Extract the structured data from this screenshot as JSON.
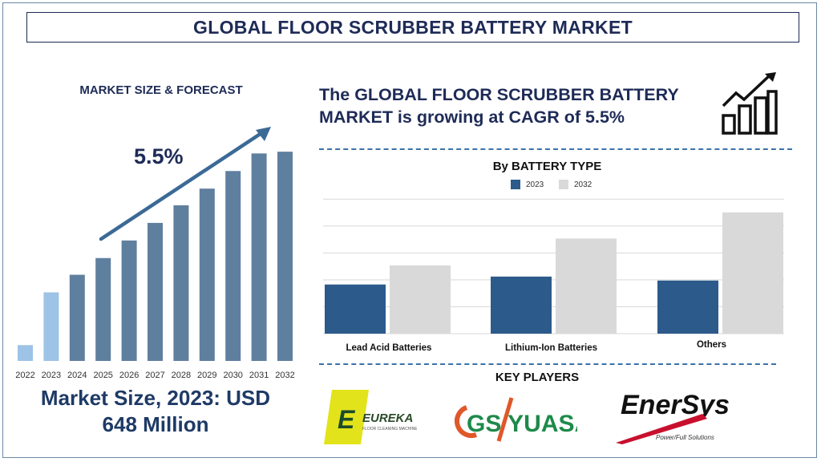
{
  "header": {
    "title": "GLOBAL FLOOR SCRUBBER BATTERY MARKET"
  },
  "left": {
    "section_title": "MARKET SIZE & FORECAST",
    "cagr_label": "5.5%",
    "market_size_text_line1": "Market Size, 2023: USD",
    "market_size_text_line2": "648 Million"
  },
  "right": {
    "headline_line1": "The GLOBAL FLOOR SCRUBBER BATTERY",
    "headline_line2": "MARKET is growing at CAGR of 5.5%",
    "battery_title": "By BATTERY TYPE",
    "key_players_title": "KEY PLAYERS"
  },
  "key_players": {
    "eureka": {
      "name": "EUREKA",
      "tagline": "FLOOR CLEANING MACHINES"
    },
    "gs_yuasa": {
      "name": "GS YUASA"
    },
    "enersys": {
      "name": "EnerSys",
      "tagline": "Power/Full Solutions"
    }
  },
  "colors": {
    "navy": "#1e2b57",
    "bar_main": "#5f7f9f",
    "bar_light": "#9dc3e6",
    "series_2023": "#2c5a8b",
    "series_2032": "#d9d9d9",
    "arrow": "#3b6a96"
  },
  "chart_data": [
    {
      "type": "bar",
      "title": "MARKET SIZE & FORECAST",
      "categories": [
        "2022",
        "2023",
        "2024",
        "2025",
        "2026",
        "2027",
        "2028",
        "2029",
        "2030",
        "2031",
        "2032"
      ],
      "values": [
        18,
        78,
        98,
        117,
        137,
        157,
        177,
        196,
        216,
        236,
        238
      ],
      "ylim": [
        0,
        260
      ],
      "highlight_indices": [
        0,
        1
      ],
      "annotation": "5.5%",
      "grid": false
    },
    {
      "type": "bar",
      "title": "By BATTERY TYPE",
      "categories": [
        "Lead Acid Batteries",
        "Lithium-Ion Batteries",
        "Others"
      ],
      "series": [
        {
          "name": "2023",
          "values": [
            62,
            72,
            67
          ]
        },
        {
          "name": "2032",
          "values": [
            86,
            120,
            153
          ]
        }
      ],
      "ylim": [
        0,
        175
      ],
      "grid": true,
      "legend_position": "top-center"
    }
  ]
}
